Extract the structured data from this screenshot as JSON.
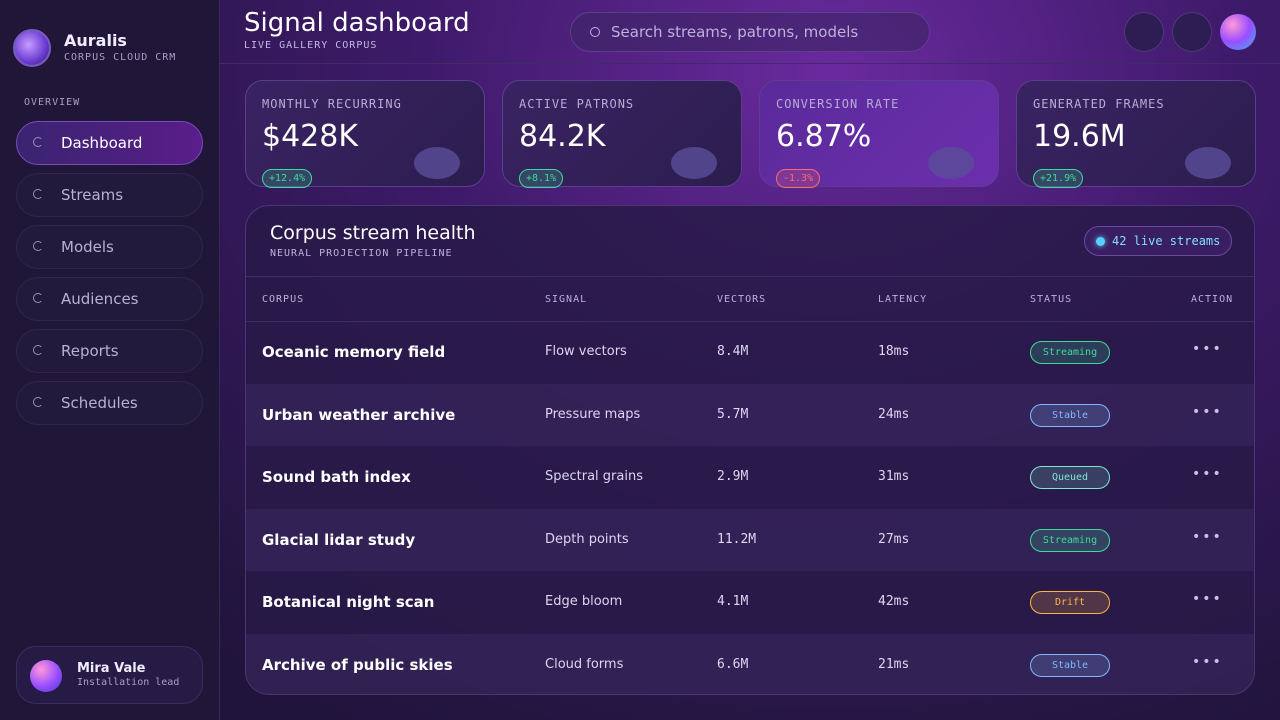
{
  "brand": {
    "name": "Auralis",
    "tagline": "CORPUS CLOUD CRM"
  },
  "nav": {
    "section": "OVERVIEW",
    "items": [
      "Dashboard",
      "Streams",
      "Models",
      "Audiences",
      "Reports",
      "Schedules"
    ]
  },
  "user": {
    "name": "Mira Vale",
    "role": "Installation lead"
  },
  "header": {
    "title": "Signal dashboard",
    "subtitle": "LIVE GALLERY CORPUS",
    "search_placeholder": "Search streams, patrons, models"
  },
  "kpis": [
    {
      "label": "MONTHLY RECURRING",
      "value": "$428K",
      "change": "+12.4%",
      "color": "#3ddc97"
    },
    {
      "label": "ACTIVE PATRONS",
      "value": "84.2K",
      "change": "+8.1%",
      "color": "#3ddc97"
    },
    {
      "label": "CONVERSION RATE",
      "value": "6.87%",
      "change": "-1.3%",
      "color": "#ff6b6b"
    },
    {
      "label": "GENERATED FRAMES",
      "value": "19.6M",
      "change": "+21.9%",
      "color": "#3ddc97"
    }
  ],
  "table": {
    "title": "Corpus stream health",
    "subtitle": "NEURAL PROJECTION PIPELINE",
    "badge": "42 live streams",
    "columns": [
      "CORPUS",
      "SIGNAL",
      "VECTORS",
      "LATENCY",
      "STATUS",
      "ACTION"
    ],
    "rows": [
      {
        "corpus": "Oceanic memory field",
        "signal": "Flow vectors",
        "vectors": "8.4M",
        "latency": "18ms",
        "status": "Streaming",
        "status_color": "#3ddc97"
      },
      {
        "corpus": "Urban weather archive",
        "signal": "Pressure maps",
        "vectors": "5.7M",
        "latency": "24ms",
        "status": "Stable",
        "status_color": "#7fb8ff"
      },
      {
        "corpus": "Sound bath index",
        "signal": "Spectral grains",
        "vectors": "2.9M",
        "latency": "31ms",
        "status": "Queued",
        "status_color": "#7fe6d2"
      },
      {
        "corpus": "Glacial lidar study",
        "signal": "Depth points",
        "vectors": "11.2M",
        "latency": "27ms",
        "status": "Streaming",
        "status_color": "#3ddc97"
      },
      {
        "corpus": "Botanical night scan",
        "signal": "Edge bloom",
        "vectors": "4.1M",
        "latency": "42ms",
        "status": "Drift",
        "status_color": "#ffb347"
      },
      {
        "corpus": "Archive of public skies",
        "signal": "Cloud forms",
        "vectors": "6.6M",
        "latency": "21ms",
        "status": "Stable",
        "status_color": "#7fb8ff"
      }
    ]
  }
}
